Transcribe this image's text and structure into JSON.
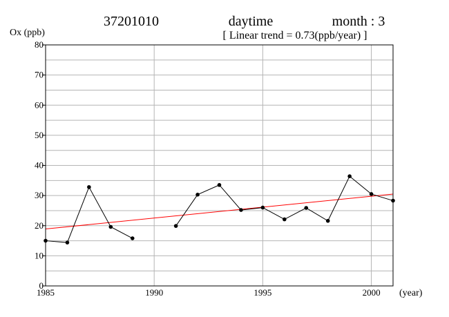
{
  "header": {
    "station": "37201010",
    "period": "daytime",
    "month": "month : 3",
    "trend": "[ Linear trend = 0.73(ppb/year) ]"
  },
  "chart_data": {
    "type": "line",
    "ylabel": "Ox (ppb)",
    "xlabel": "(year)",
    "xlim": [
      1985,
      2001
    ],
    "ylim": [
      0,
      80
    ],
    "x_ticks": [
      1985,
      1990,
      1995,
      2000
    ],
    "y_ticks": [
      0,
      10,
      20,
      30,
      40,
      50,
      60,
      70,
      80
    ],
    "grid": true,
    "series": [
      {
        "color": "#000000",
        "points": [
          [
            1985,
            15.0
          ],
          [
            1986,
            14.4
          ],
          [
            1987,
            32.8
          ],
          [
            1988,
            19.6
          ],
          [
            1989,
            15.8
          ],
          [
            1990,
            null
          ],
          [
            1991,
            19.9
          ],
          [
            1992,
            30.3
          ],
          [
            1993,
            33.5
          ],
          [
            1994,
            25.2
          ],
          [
            1995,
            26.0
          ],
          [
            1996,
            22.1
          ],
          [
            1997,
            25.9
          ],
          [
            1998,
            21.6
          ],
          [
            1999,
            36.4
          ],
          [
            2000,
            30.5
          ],
          [
            2001,
            28.3
          ]
        ]
      }
    ],
    "trend_line": {
      "color": "#ff0000",
      "start": [
        1985,
        18.9
      ],
      "end": [
        2001,
        30.5
      ]
    }
  }
}
